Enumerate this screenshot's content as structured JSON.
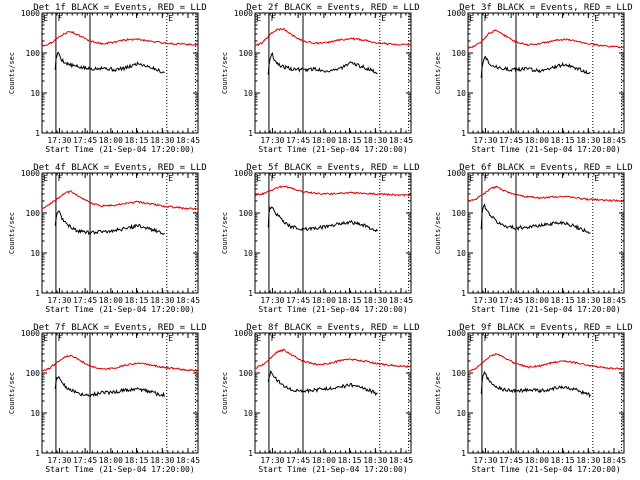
{
  "page": {
    "background": "#ffffff"
  },
  "colors": {
    "events": "#000000",
    "lld": "#e00000",
    "axis": "#000000"
  },
  "chart_data": [
    {
      "type": "line",
      "title": "Det 1f BLACK = Events, RED = LLD",
      "xlabel": "Start Time (21-Sep-04 17:20:00)",
      "ylabel": "Counts/sec",
      "yscale": "log",
      "ylim": [
        1,
        1000
      ],
      "xlim": [
        0,
        65
      ],
      "x_tick_labels": [
        "17:30",
        "17:45",
        "18:00",
        "18:15",
        "18:30",
        "18:45"
      ],
      "y_tick_labels": [
        "1",
        "10",
        "100",
        "1000"
      ],
      "flags": [
        "E",
        "F",
        "E"
      ],
      "series": [
        {
          "name": "Events",
          "color": "#000000",
          "x": [
            5.5,
            6.0,
            7,
            8,
            10,
            12,
            15,
            20,
            25,
            30,
            35,
            40,
            45,
            48,
            51
          ],
          "values": [
            40,
            85,
            100,
            70,
            55,
            50,
            45,
            40,
            43,
            38,
            42,
            55,
            45,
            38,
            32
          ]
        },
        {
          "name": "LLD",
          "color": "#e00000",
          "x": [
            0,
            3,
            6,
            9,
            12,
            15,
            20,
            25,
            30,
            35,
            40,
            45,
            50,
            55,
            60,
            65
          ],
          "values": [
            150,
            170,
            220,
            300,
            350,
            280,
            200,
            170,
            185,
            215,
            220,
            200,
            180,
            170,
            165,
            160
          ]
        }
      ]
    },
    {
      "type": "line",
      "title": "Det 2f BLACK = Events, RED = LLD",
      "xlabel": "Start Time (21-Sep-04 17:20:00)",
      "ylabel": "Counts/sec",
      "yscale": "log",
      "ylim": [
        1,
        1000
      ],
      "xlim": [
        0,
        65
      ],
      "x_tick_labels": [
        "17:30",
        "17:45",
        "18:00",
        "18:15",
        "18:30",
        "18:45"
      ],
      "y_tick_labels": [
        "1",
        "10",
        "100",
        "1000"
      ],
      "flags": [
        "E",
        "F",
        "E"
      ],
      "series": [
        {
          "name": "Events",
          "color": "#000000",
          "x": [
            5.5,
            6.0,
            7,
            8,
            10,
            12,
            15,
            20,
            25,
            30,
            35,
            40,
            45,
            48,
            51
          ],
          "values": [
            30,
            60,
            100,
            70,
            50,
            45,
            40,
            38,
            40,
            35,
            40,
            55,
            45,
            38,
            32
          ]
        },
        {
          "name": "LLD",
          "color": "#e00000",
          "x": [
            0,
            3,
            6,
            9,
            12,
            15,
            20,
            25,
            30,
            35,
            40,
            45,
            50,
            55,
            60,
            65
          ],
          "values": [
            150,
            180,
            280,
            380,
            400,
            290,
            200,
            175,
            180,
            210,
            230,
            210,
            185,
            170,
            165,
            160
          ]
        }
      ]
    },
    {
      "type": "line",
      "title": "Det 3f BLACK = Events, RED = LLD",
      "xlabel": "Start Time (21-Sep-04 17:20:00)",
      "ylabel": "Counts/sec",
      "yscale": "log",
      "ylim": [
        1,
        1000
      ],
      "xlim": [
        0,
        65
      ],
      "x_tick_labels": [
        "17:30",
        "17:45",
        "18:00",
        "18:15",
        "18:30",
        "18:45"
      ],
      "y_tick_labels": [
        "1",
        "10",
        "100",
        "1000"
      ],
      "flags": [
        "E",
        "F",
        "E"
      ],
      "series": [
        {
          "name": "Events",
          "color": "#000000",
          "x": [
            5.5,
            6.0,
            7,
            8,
            10,
            12,
            15,
            20,
            25,
            30,
            35,
            40,
            45,
            48,
            51
          ],
          "values": [
            25,
            55,
            90,
            65,
            50,
            45,
            40,
            38,
            40,
            36,
            42,
            52,
            42,
            36,
            30
          ]
        },
        {
          "name": "LLD",
          "color": "#e00000",
          "x": [
            0,
            3,
            6,
            9,
            12,
            15,
            20,
            25,
            30,
            35,
            40,
            45,
            50,
            55,
            60,
            65
          ],
          "values": [
            130,
            150,
            200,
            320,
            370,
            280,
            190,
            160,
            170,
            200,
            220,
            200,
            170,
            155,
            145,
            140
          ]
        }
      ]
    },
    {
      "type": "line",
      "title": "Det 4f BLACK = Events, RED = LLD",
      "xlabel": "Start Time (21-Sep-04 17:20:00)",
      "ylabel": "Counts/sec",
      "yscale": "log",
      "ylim": [
        1,
        1000
      ],
      "xlim": [
        0,
        65
      ],
      "x_tick_labels": [
        "17:30",
        "17:45",
        "18:00",
        "18:15",
        "18:30",
        "18:45"
      ],
      "y_tick_labels": [
        "1",
        "10",
        "100",
        "1000"
      ],
      "flags": [
        "E",
        "F",
        "E"
      ],
      "series": [
        {
          "name": "Events",
          "color": "#000000",
          "x": [
            5.5,
            6.0,
            7,
            8,
            10,
            12,
            15,
            20,
            25,
            30,
            35,
            40,
            45,
            48,
            51
          ],
          "values": [
            50,
            90,
            110,
            80,
            55,
            45,
            35,
            32,
            35,
            36,
            42,
            48,
            40,
            35,
            30
          ]
        },
        {
          "name": "LLD",
          "color": "#e00000",
          "x": [
            0,
            3,
            6,
            9,
            12,
            15,
            20,
            25,
            30,
            35,
            40,
            45,
            50,
            55,
            60,
            65
          ],
          "values": [
            130,
            160,
            220,
            300,
            350,
            260,
            180,
            150,
            155,
            175,
            190,
            170,
            150,
            140,
            130,
            125
          ]
        }
      ]
    },
    {
      "type": "line",
      "title": "Det 5f BLACK = Events, RED = LLD",
      "xlabel": "Start Time (21-Sep-04 17:20:00)",
      "ylabel": "Counts/sec",
      "yscale": "log",
      "ylim": [
        1,
        1000
      ],
      "xlim": [
        0,
        65
      ],
      "x_tick_labels": [
        "17:30",
        "17:45",
        "18:00",
        "18:15",
        "18:30",
        "18:45"
      ],
      "y_tick_labels": [
        "1",
        "10",
        "100",
        "1000"
      ],
      "flags": [
        "E",
        "F",
        "E"
      ],
      "series": [
        {
          "name": "Events",
          "color": "#000000",
          "x": [
            5.5,
            6.0,
            7,
            8,
            10,
            12,
            15,
            20,
            25,
            30,
            35,
            40,
            45,
            48,
            51
          ],
          "values": [
            45,
            120,
            150,
            110,
            80,
            60,
            45,
            40,
            42,
            45,
            55,
            60,
            50,
            42,
            35
          ]
        },
        {
          "name": "LLD",
          "color": "#e00000",
          "x": [
            0,
            3,
            6,
            9,
            12,
            15,
            20,
            25,
            30,
            35,
            40,
            45,
            50,
            55,
            60,
            65
          ],
          "values": [
            280,
            300,
            350,
            430,
            470,
            420,
            340,
            310,
            300,
            310,
            320,
            310,
            300,
            290,
            280,
            275
          ]
        }
      ]
    },
    {
      "type": "line",
      "title": "Det 6f BLACK = Events, RED = LLD",
      "xlabel": "Start Time (21-Sep-04 17:20:00)",
      "ylabel": "Counts/sec",
      "yscale": "log",
      "ylim": [
        1,
        1000
      ],
      "xlim": [
        0,
        65
      ],
      "x_tick_labels": [
        "17:30",
        "17:45",
        "18:00",
        "18:15",
        "18:30",
        "18:45"
      ],
      "y_tick_labels": [
        "1",
        "10",
        "100",
        "1000"
      ],
      "flags": [
        "E",
        "F",
        "E"
      ],
      "series": [
        {
          "name": "Events",
          "color": "#000000",
          "x": [
            5.5,
            6.0,
            7,
            8,
            10,
            12,
            15,
            20,
            25,
            30,
            35,
            40,
            45,
            48,
            51
          ],
          "values": [
            40,
            130,
            150,
            110,
            80,
            60,
            48,
            42,
            45,
            48,
            55,
            58,
            45,
            38,
            32
          ]
        },
        {
          "name": "LLD",
          "color": "#e00000",
          "x": [
            0,
            3,
            6,
            9,
            12,
            15,
            20,
            25,
            30,
            35,
            40,
            45,
            50,
            55,
            60,
            65
          ],
          "values": [
            200,
            220,
            280,
            400,
            450,
            360,
            280,
            250,
            240,
            250,
            260,
            240,
            220,
            210,
            205,
            200
          ]
        }
      ]
    },
    {
      "type": "line",
      "title": "Det 7f BLACK = Events, RED = LLD",
      "xlabel": "Start Time (21-Sep-04 17:20:00)",
      "ylabel": "Counts/sec",
      "yscale": "log",
      "ylim": [
        1,
        1000
      ],
      "xlim": [
        0,
        65
      ],
      "x_tick_labels": [
        "17:30",
        "17:45",
        "18:00",
        "18:15",
        "18:30",
        "18:45"
      ],
      "y_tick_labels": [
        "1",
        "10",
        "100",
        "1000"
      ],
      "flags": [
        "E",
        "F",
        "E"
      ],
      "series": [
        {
          "name": "Events",
          "color": "#000000",
          "x": [
            5.5,
            6.0,
            7,
            8,
            10,
            12,
            15,
            20,
            25,
            30,
            35,
            40,
            45,
            48,
            51
          ],
          "values": [
            40,
            70,
            80,
            65,
            45,
            38,
            30,
            28,
            32,
            33,
            38,
            40,
            35,
            30,
            28
          ]
        },
        {
          "name": "LLD",
          "color": "#e00000",
          "x": [
            0,
            3,
            6,
            9,
            12,
            15,
            20,
            25,
            30,
            35,
            40,
            45,
            50,
            55,
            60,
            65
          ],
          "values": [
            110,
            130,
            180,
            240,
            280,
            220,
            150,
            125,
            130,
            160,
            180,
            160,
            140,
            130,
            120,
            115
          ]
        }
      ]
    },
    {
      "type": "line",
      "title": "Det 8f BLACK = Events, RED = LLD",
      "xlabel": "Start Time (21-Sep-04 17:20:00)",
      "ylabel": "Counts/sec",
      "yscale": "log",
      "ylim": [
        1,
        1000
      ],
      "xlim": [
        0,
        65
      ],
      "x_tick_labels": [
        "17:30",
        "17:45",
        "18:00",
        "18:15",
        "18:30",
        "18:45"
      ],
      "y_tick_labels": [
        "1",
        "10",
        "100",
        "1000"
      ],
      "flags": [
        "E",
        "F",
        "E"
      ],
      "series": [
        {
          "name": "Events",
          "color": "#000000",
          "x": [
            5.5,
            6.0,
            7,
            8,
            10,
            12,
            15,
            20,
            25,
            30,
            35,
            40,
            45,
            48,
            51
          ],
          "values": [
            60,
            90,
            110,
            80,
            60,
            48,
            38,
            35,
            38,
            40,
            45,
            50,
            42,
            36,
            30
          ]
        },
        {
          "name": "LLD",
          "color": "#e00000",
          "x": [
            0,
            3,
            6,
            9,
            12,
            15,
            20,
            25,
            30,
            35,
            40,
            45,
            50,
            55,
            60,
            65
          ],
          "values": [
            130,
            160,
            220,
            330,
            380,
            290,
            200,
            165,
            170,
            200,
            220,
            200,
            175,
            160,
            150,
            145
          ]
        }
      ]
    },
    {
      "type": "line",
      "title": "Det 9f BLACK = Events, RED = LLD",
      "xlabel": "Start Time (21-Sep-04 17:20:00)",
      "ylabel": "Counts/sec",
      "yscale": "log",
      "ylim": [
        1,
        1000
      ],
      "xlim": [
        0,
        65
      ],
      "x_tick_labels": [
        "17:30",
        "17:45",
        "18:00",
        "18:15",
        "18:30",
        "18:45"
      ],
      "y_tick_labels": [
        "1",
        "10",
        "100",
        "1000"
      ],
      "flags": [
        "E",
        "F",
        "E"
      ],
      "series": [
        {
          "name": "Events",
          "color": "#000000",
          "x": [
            5.5,
            6.0,
            7,
            8,
            10,
            12,
            15,
            20,
            25,
            30,
            35,
            40,
            45,
            48,
            51
          ],
          "values": [
            30,
            80,
            100,
            75,
            55,
            45,
            38,
            35,
            38,
            36,
            40,
            45,
            38,
            32,
            28
          ]
        },
        {
          "name": "LLD",
          "color": "#e00000",
          "x": [
            0,
            3,
            6,
            9,
            12,
            15,
            20,
            25,
            30,
            35,
            40,
            45,
            50,
            55,
            60,
            65
          ],
          "values": [
            110,
            130,
            180,
            260,
            300,
            240,
            170,
            140,
            150,
            180,
            200,
            180,
            155,
            140,
            130,
            125
          ]
        }
      ]
    }
  ]
}
